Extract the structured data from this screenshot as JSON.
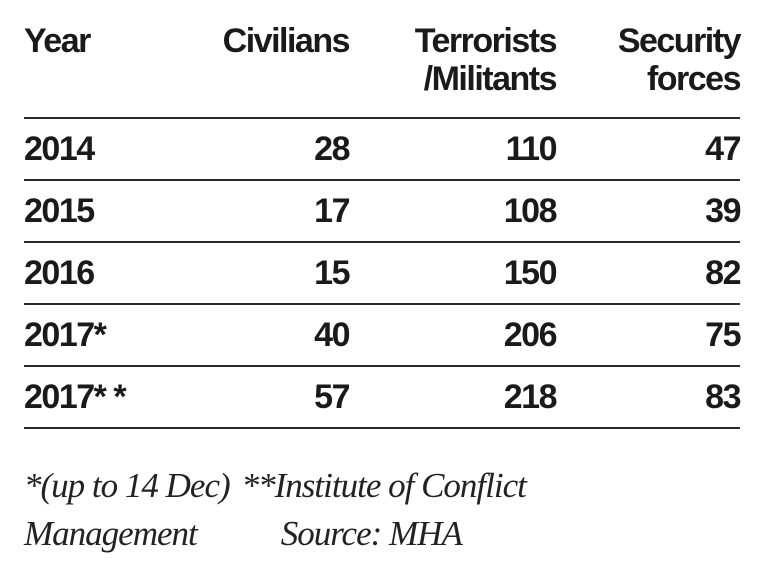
{
  "chart_data": {
    "type": "table",
    "columns": [
      "Year",
      "Civilians",
      "Terrorists /Militants",
      "Security forces"
    ],
    "header_lines": {
      "year": [
        "Year"
      ],
      "civilians": [
        "Civilians"
      ],
      "terrorists": [
        "Terrorists",
        "/Militants"
      ],
      "security": [
        "Security",
        "forces"
      ]
    },
    "rows": [
      {
        "year": "2014",
        "civilians": 28,
        "terrorists": 110,
        "security": 47
      },
      {
        "year": "2015",
        "civilians": 17,
        "terrorists": 108,
        "security": 39
      },
      {
        "year": "2016",
        "civilians": 15,
        "terrorists": 150,
        "security": 82
      },
      {
        "year": "2017*",
        "civilians": 40,
        "terrorists": 206,
        "security": 75
      },
      {
        "year": "2017* *",
        "civilians": 57,
        "terrorists": 218,
        "security": 83
      }
    ]
  },
  "footnote": {
    "note1": "*(up to 14 Dec)",
    "note2": "**Institute of Conflict",
    "note2_cont": "Management",
    "source": "Source: MHA"
  }
}
